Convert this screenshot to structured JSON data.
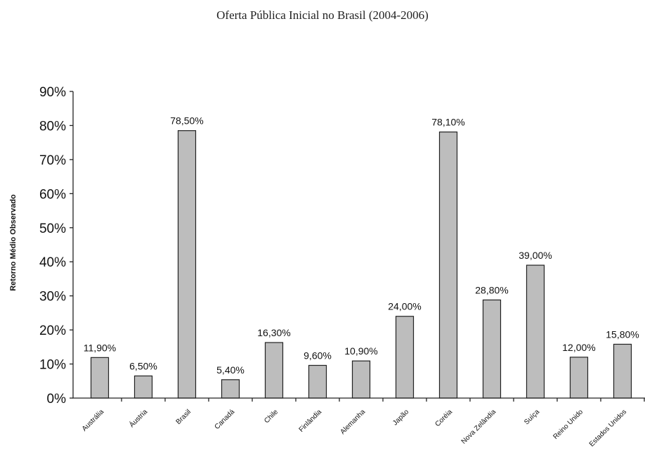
{
  "chart_data": {
    "type": "bar",
    "title": "Oferta Pública Inicial no Brasil (2004-2006)",
    "ylabel": "Retorno Médio Observado",
    "xlabel": "",
    "ylim": [
      0,
      90
    ],
    "yticks": [
      "0%",
      "10%",
      "20%",
      "30%",
      "40%",
      "50%",
      "60%",
      "70%",
      "80%",
      "90%"
    ],
    "categories": [
      "Austrália",
      "Áustria",
      "Brasil",
      "Canadá",
      "Chile",
      "Finlândia",
      "Alemanha",
      "Japão",
      "Coréia",
      "Nova Zelândia",
      "Suíça",
      "Reino Unido",
      "Estados Unidos"
    ],
    "values": [
      11.9,
      6.5,
      78.5,
      5.4,
      16.3,
      9.6,
      10.9,
      24.0,
      78.1,
      28.8,
      39.0,
      12.0,
      15.8
    ],
    "data_labels": [
      "11,90%",
      "6,50%",
      "78,50%",
      "5,40%",
      "16,30%",
      "9,60%",
      "10,90%",
      "24,00%",
      "78,10%",
      "28,80%",
      "39,00%",
      "12,00%",
      "15,80%"
    ],
    "colors": {
      "bar": "#bdbdbd",
      "outline": "#222222"
    }
  }
}
